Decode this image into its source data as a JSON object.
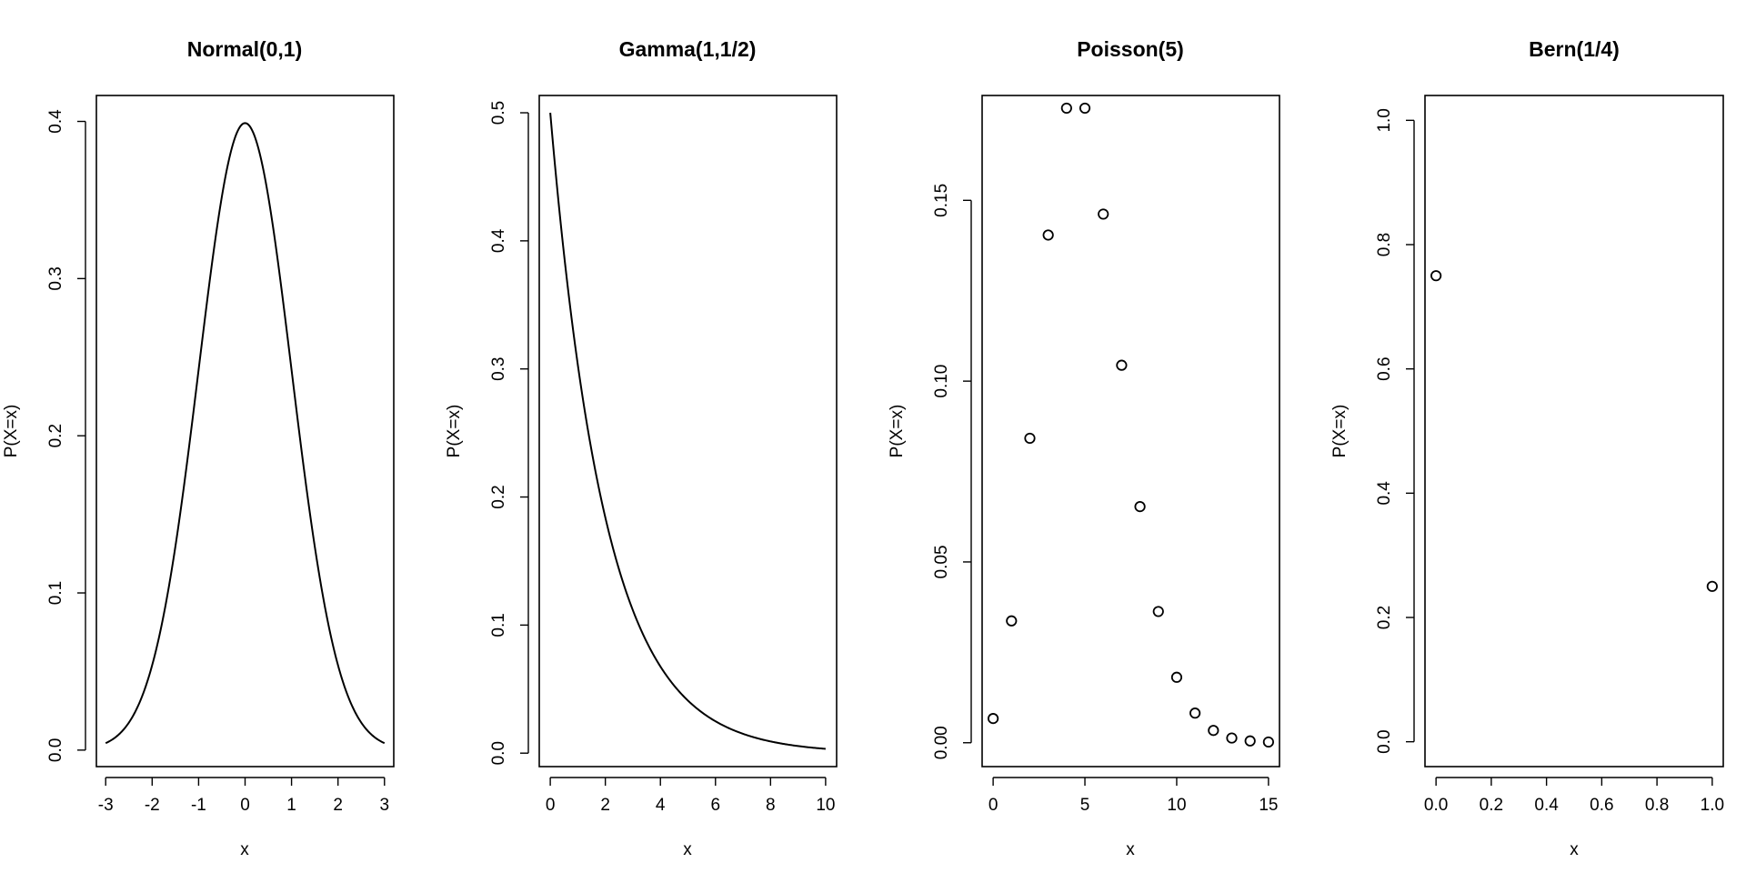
{
  "chart_data": [
    {
      "type": "line",
      "title": "Normal(0,1)",
      "xlabel": "x",
      "ylabel": "P(X=x)",
      "xlim": [
        -3.2,
        3.2
      ],
      "ylim": [
        -0.0105,
        0.4165
      ],
      "xticks": [
        -3,
        -2,
        -1,
        0,
        1,
        2,
        3
      ],
      "xtick_labels": [
        "-3",
        "-2",
        "-1",
        "0",
        "1",
        "2",
        "3"
      ],
      "yticks": [
        0.0,
        0.1,
        0.2,
        0.3,
        0.4
      ],
      "ytick_labels": [
        "0.0",
        "0.1",
        "0.2",
        "0.3",
        "0.4"
      ],
      "curve": {
        "family": "normal",
        "mean": 0,
        "sd": 1,
        "x_from": -3,
        "x_to": 3
      },
      "x": [
        -3.0,
        -2.5,
        -2.0,
        -1.5,
        -1.0,
        -0.5,
        0.0,
        0.5,
        1.0,
        1.5,
        2.0,
        2.5,
        3.0
      ],
      "y": [
        0.0044,
        0.0175,
        0.054,
        0.1295,
        0.242,
        0.3521,
        0.3989,
        0.3521,
        0.242,
        0.1295,
        0.054,
        0.0175,
        0.0044
      ]
    },
    {
      "type": "line",
      "title": "Gamma(1,1/2)",
      "xlabel": "x",
      "ylabel": "P(X=x)",
      "xlim": [
        -0.4,
        10.4
      ],
      "ylim": [
        -0.0105,
        0.5135
      ],
      "xticks": [
        0,
        2,
        4,
        6,
        8,
        10
      ],
      "xtick_labels": [
        "0",
        "2",
        "4",
        "6",
        "8",
        "10"
      ],
      "yticks": [
        0.0,
        0.1,
        0.2,
        0.3,
        0.4,
        0.5
      ],
      "ytick_labels": [
        "0.0",
        "0.1",
        "0.2",
        "0.3",
        "0.4",
        "0.5"
      ],
      "curve": {
        "family": "gamma",
        "shape": 1,
        "rate": 0.5,
        "x_from": 0,
        "x_to": 10
      },
      "x": [
        0,
        1,
        2,
        3,
        4,
        5,
        6,
        7,
        8,
        9,
        10
      ],
      "y": [
        0.5,
        0.3033,
        0.1839,
        0.1116,
        0.0677,
        0.041,
        0.0249,
        0.0151,
        0.0092,
        0.0056,
        0.0034
      ]
    },
    {
      "type": "scatter",
      "title": "Poisson(5)",
      "xlabel": "x",
      "ylabel": "P(X=x)",
      "xlim": [
        -0.6,
        15.6
      ],
      "ylim": [
        -0.0066,
        0.179
      ],
      "xticks": [
        0,
        5,
        10,
        15
      ],
      "xtick_labels": [
        "0",
        "5",
        "10",
        "15"
      ],
      "yticks": [
        0.0,
        0.05,
        0.1,
        0.15
      ],
      "ytick_labels": [
        "0.00",
        "0.05",
        "0.10",
        "0.15"
      ],
      "x": [
        0,
        1,
        2,
        3,
        4,
        5,
        6,
        7,
        8,
        9,
        10,
        11,
        12,
        13,
        14,
        15
      ],
      "y": [
        0.0067,
        0.0337,
        0.0842,
        0.1404,
        0.1755,
        0.1755,
        0.1462,
        0.1044,
        0.0653,
        0.0363,
        0.0181,
        0.0082,
        0.0034,
        0.0013,
        0.0005,
        0.0002
      ]
    },
    {
      "type": "scatter",
      "title": "Bern(1/4)",
      "xlabel": "x",
      "ylabel": "P(X=x)",
      "xlim": [
        -0.04,
        1.04
      ],
      "ylim": [
        -0.04,
        1.04
      ],
      "xticks": [
        0.0,
        0.2,
        0.4,
        0.6,
        0.8,
        1.0
      ],
      "xtick_labels": [
        "0.0",
        "0.2",
        "0.4",
        "0.6",
        "0.8",
        "1.0"
      ],
      "yticks": [
        0.0,
        0.2,
        0.4,
        0.6,
        0.8,
        1.0
      ],
      "ytick_labels": [
        "0.0",
        "0.2",
        "0.4",
        "0.6",
        "0.8",
        "1.0"
      ],
      "x": [
        0,
        1
      ],
      "y": [
        0.75,
        0.25
      ]
    }
  ]
}
